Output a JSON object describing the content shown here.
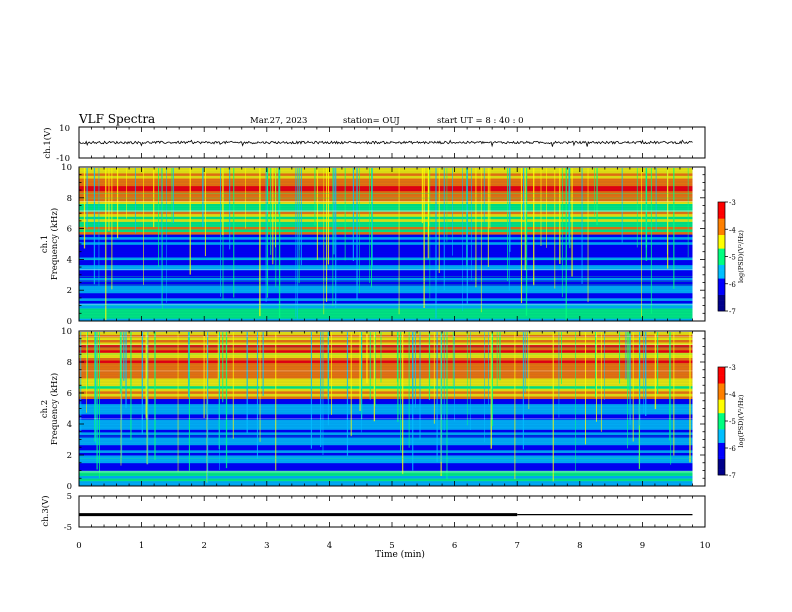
{
  "header": {
    "title": "VLF Spectra",
    "date": "Mar.27, 2023",
    "station": "station= OUJ",
    "start": "start  UT =   8 : 40 : 0"
  },
  "chart_data": [
    {
      "type": "line",
      "panel": "ch1-waveform",
      "ylabel": "ch.1(V)",
      "ylim": [
        -10,
        10
      ],
      "y_ticks": [
        "10",
        "-10"
      ],
      "xlim": [
        0,
        10
      ],
      "baseline": 0,
      "description_level": "noisy signal around 0 V, amplitude about ±1 V, occasional spikes"
    },
    {
      "type": "heatmap",
      "panel": "ch1-spectrogram",
      "ylabel": "ch.1\nFrequency (kHz)",
      "ylim": [
        0,
        10
      ],
      "y_ticks": [
        "0",
        "2",
        "4",
        "6",
        "8",
        "10"
      ],
      "xlim": [
        0,
        10
      ],
      "colorbar": {
        "label": "log(PSD)(V²/Hz)",
        "range": [
          -7,
          -3
        ],
        "ticks": [
          "-3",
          "-4",
          "-5",
          "-6",
          "-7"
        ]
      }
    },
    {
      "type": "heatmap",
      "panel": "ch2-spectrogram",
      "ylabel": "ch.2\nFrequency (kHz)",
      "ylim": [
        0,
        10
      ],
      "y_ticks": [
        "0",
        "2",
        "4",
        "6",
        "8",
        "10"
      ],
      "xlim": [
        0,
        10
      ],
      "colorbar": {
        "label": "log(PSD)(V²/Hz)",
        "range": [
          -7,
          -3
        ],
        "ticks": [
          "-3",
          "-4",
          "-5",
          "-6",
          "-7"
        ]
      }
    },
    {
      "type": "line",
      "panel": "ch3-level",
      "ylabel": "ch.3(V)",
      "ylim": [
        -5,
        5
      ],
      "y_ticks": [
        "5",
        "0",
        "-5"
      ],
      "xlim": [
        0,
        10
      ],
      "x": [
        0,
        7.0,
        7.0,
        9.8
      ],
      "y": [
        -1,
        -1,
        -1,
        -1
      ],
      "thick_until": 7.0
    }
  ],
  "x_axis": {
    "label": "Time  (min)",
    "ticks": [
      "0",
      "1",
      "2",
      "3",
      "4",
      "5",
      "6",
      "7",
      "8",
      "9",
      "10"
    ],
    "data_end": 9.8
  },
  "colors": {
    "colormap": [
      "#00008b",
      "#0000ff",
      "#00bfff",
      "#00ff80",
      "#ffff00",
      "#ff8000",
      "#ff0000",
      "#ffffff"
    ]
  }
}
